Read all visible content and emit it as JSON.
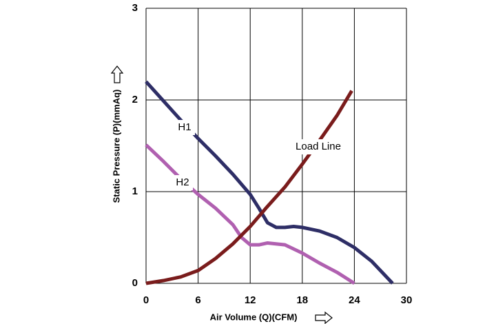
{
  "chart_data": {
    "type": "line",
    "xlabel": "Air Volume (Q)(CFM)",
    "ylabel": "Static Pressure (P)(mmAq)",
    "xlim": [
      0,
      30
    ],
    "xticks": [
      0,
      6,
      12,
      18,
      24,
      30
    ],
    "ylim": [
      0,
      3
    ],
    "yticks": [
      0,
      1,
      2,
      3
    ],
    "grid": true,
    "annotations": [
      "H1",
      "H2",
      "Load Line"
    ],
    "series": [
      {
        "name": "H1",
        "color": "#2e2e66",
        "x": [
          0,
          2,
          4,
          6,
          8,
          10,
          12,
          13,
          14,
          15,
          16,
          17,
          18,
          20,
          22,
          24,
          26,
          28.4
        ],
        "values": [
          2.2,
          1.99,
          1.78,
          1.58,
          1.39,
          1.19,
          0.97,
          0.82,
          0.66,
          0.61,
          0.61,
          0.62,
          0.61,
          0.57,
          0.5,
          0.39,
          0.24,
          0
        ]
      },
      {
        "name": "H2",
        "color": "#b060b0",
        "x": [
          0,
          2,
          4,
          6,
          8,
          10,
          11,
          12,
          13,
          14,
          16,
          18,
          20,
          22,
          24
        ],
        "values": [
          1.51,
          1.33,
          1.14,
          0.97,
          0.82,
          0.64,
          0.5,
          0.42,
          0.42,
          0.44,
          0.42,
          0.33,
          0.22,
          0.12,
          0
        ]
      },
      {
        "name": "Load Line",
        "color": "#7a1c1c",
        "x": [
          0,
          2,
          4,
          6,
          8,
          10,
          12,
          14,
          16,
          18,
          20,
          22,
          23.7
        ],
        "values": [
          0,
          0.03,
          0.07,
          0.14,
          0.27,
          0.43,
          0.62,
          0.84,
          1.05,
          1.3,
          1.56,
          1.83,
          2.1
        ]
      }
    ]
  }
}
